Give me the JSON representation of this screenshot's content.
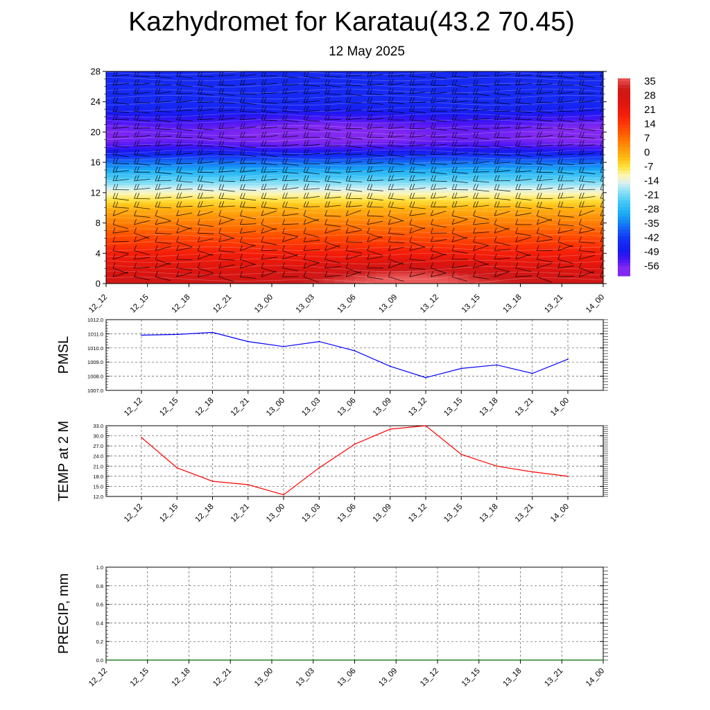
{
  "header": {
    "title": "Kazhydromet for Karatau(43.2 70.45)",
    "subtitle": "12 May 2025"
  },
  "chart_data": [
    {
      "type": "heatmap",
      "description_label": "",
      "x_ticks": [
        "12_12",
        "12_15",
        "12_18",
        "12_21",
        "13_00",
        "13_03",
        "13_06",
        "13_09",
        "13_12",
        "13_15",
        "13_18",
        "13_21",
        "14_00"
      ],
      "y_ticks": [
        0,
        4,
        8,
        12,
        16,
        20,
        24,
        28
      ],
      "ylim": [
        0,
        28
      ],
      "colorbar_labels": [
        35,
        28,
        21,
        14,
        7,
        0,
        -7,
        -14,
        -21,
        -28,
        -35,
        -42,
        -49,
        -56
      ],
      "colorbar_colors": [
        "#f2a0a0",
        "#e32020",
        "#ff3300",
        "#ff7a00",
        "#ffb000",
        "#ffe000",
        "#fff4a0",
        "#c8ecf8",
        "#20b8f0",
        "#1478f0",
        "#1432f0",
        "#1414e8",
        "#3010f0",
        "#8030f0"
      ],
      "profile": {
        "levels": [
          0,
          2,
          4,
          6,
          8,
          10,
          11,
          12,
          13,
          14,
          15,
          16,
          17,
          18,
          19,
          20,
          21,
          22,
          23,
          24,
          26,
          28
        ],
        "temps": [
          30,
          24,
          18,
          12,
          5,
          -2,
          -7,
          -12,
          -18,
          -24,
          -30,
          -36,
          -44,
          -52,
          -56,
          -56,
          -54,
          -50,
          -46,
          -44,
          -44,
          -44
        ]
      },
      "hot_spot": {
        "time": "13_10",
        "level": 0.8,
        "temp": 36
      },
      "wind_barbs": true
    },
    {
      "type": "line",
      "ylabel": "PMSL",
      "color": "#0000ff",
      "x": [
        "12_12",
        "12_15",
        "12_18",
        "12_21",
        "13_00",
        "13_03",
        "13_06",
        "13_09",
        "13_12",
        "13_15",
        "13_18",
        "13_21",
        "14_00"
      ],
      "values": [
        1010.9,
        1010.95,
        1011.1,
        1010.45,
        1010.1,
        1010.45,
        1009.8,
        1008.7,
        1007.9,
        1008.55,
        1008.8,
        1008.2,
        1009.2
      ],
      "ylim": [
        1007,
        1012
      ],
      "y_ticks": [
        "1007.0",
        "1008.0",
        "1009.0",
        "1010.0",
        "1011.0",
        "1012.0"
      ],
      "grid": true
    },
    {
      "type": "line",
      "ylabel": "TEMP at 2 M",
      "color": "#ff0000",
      "x": [
        "12_12",
        "12_15",
        "12_18",
        "12_21",
        "13_00",
        "13_03",
        "13_06",
        "13_09",
        "13_12",
        "13_15",
        "13_18",
        "13_21",
        "14_00"
      ],
      "values": [
        29.5,
        20.5,
        16.5,
        15.5,
        12.5,
        20.5,
        27.5,
        32,
        33,
        24.5,
        21,
        19.3,
        18
      ],
      "ylim": [
        12,
        33
      ],
      "y_ticks": [
        "12.0",
        "15.0",
        "18.0",
        "21.0",
        "24.0",
        "27.0",
        "30.0",
        "33.0"
      ],
      "grid": true
    },
    {
      "type": "line",
      "ylabel": "PRECIP, mm",
      "color": "#006400",
      "x": [
        "12_12",
        "12_15",
        "12_18",
        "12_21",
        "13_00",
        "13_03",
        "13_06",
        "13_09",
        "13_12",
        "13_15",
        "13_18",
        "13_21",
        "14_00"
      ],
      "values": [
        0,
        0,
        0,
        0,
        0,
        0,
        0,
        0,
        0,
        0,
        0,
        0,
        0
      ],
      "ylim": [
        0,
        1
      ],
      "y_ticks": [
        "0.0",
        "0.2",
        "0.4",
        "0.6",
        "0.8",
        "1.0"
      ],
      "grid": true
    }
  ]
}
